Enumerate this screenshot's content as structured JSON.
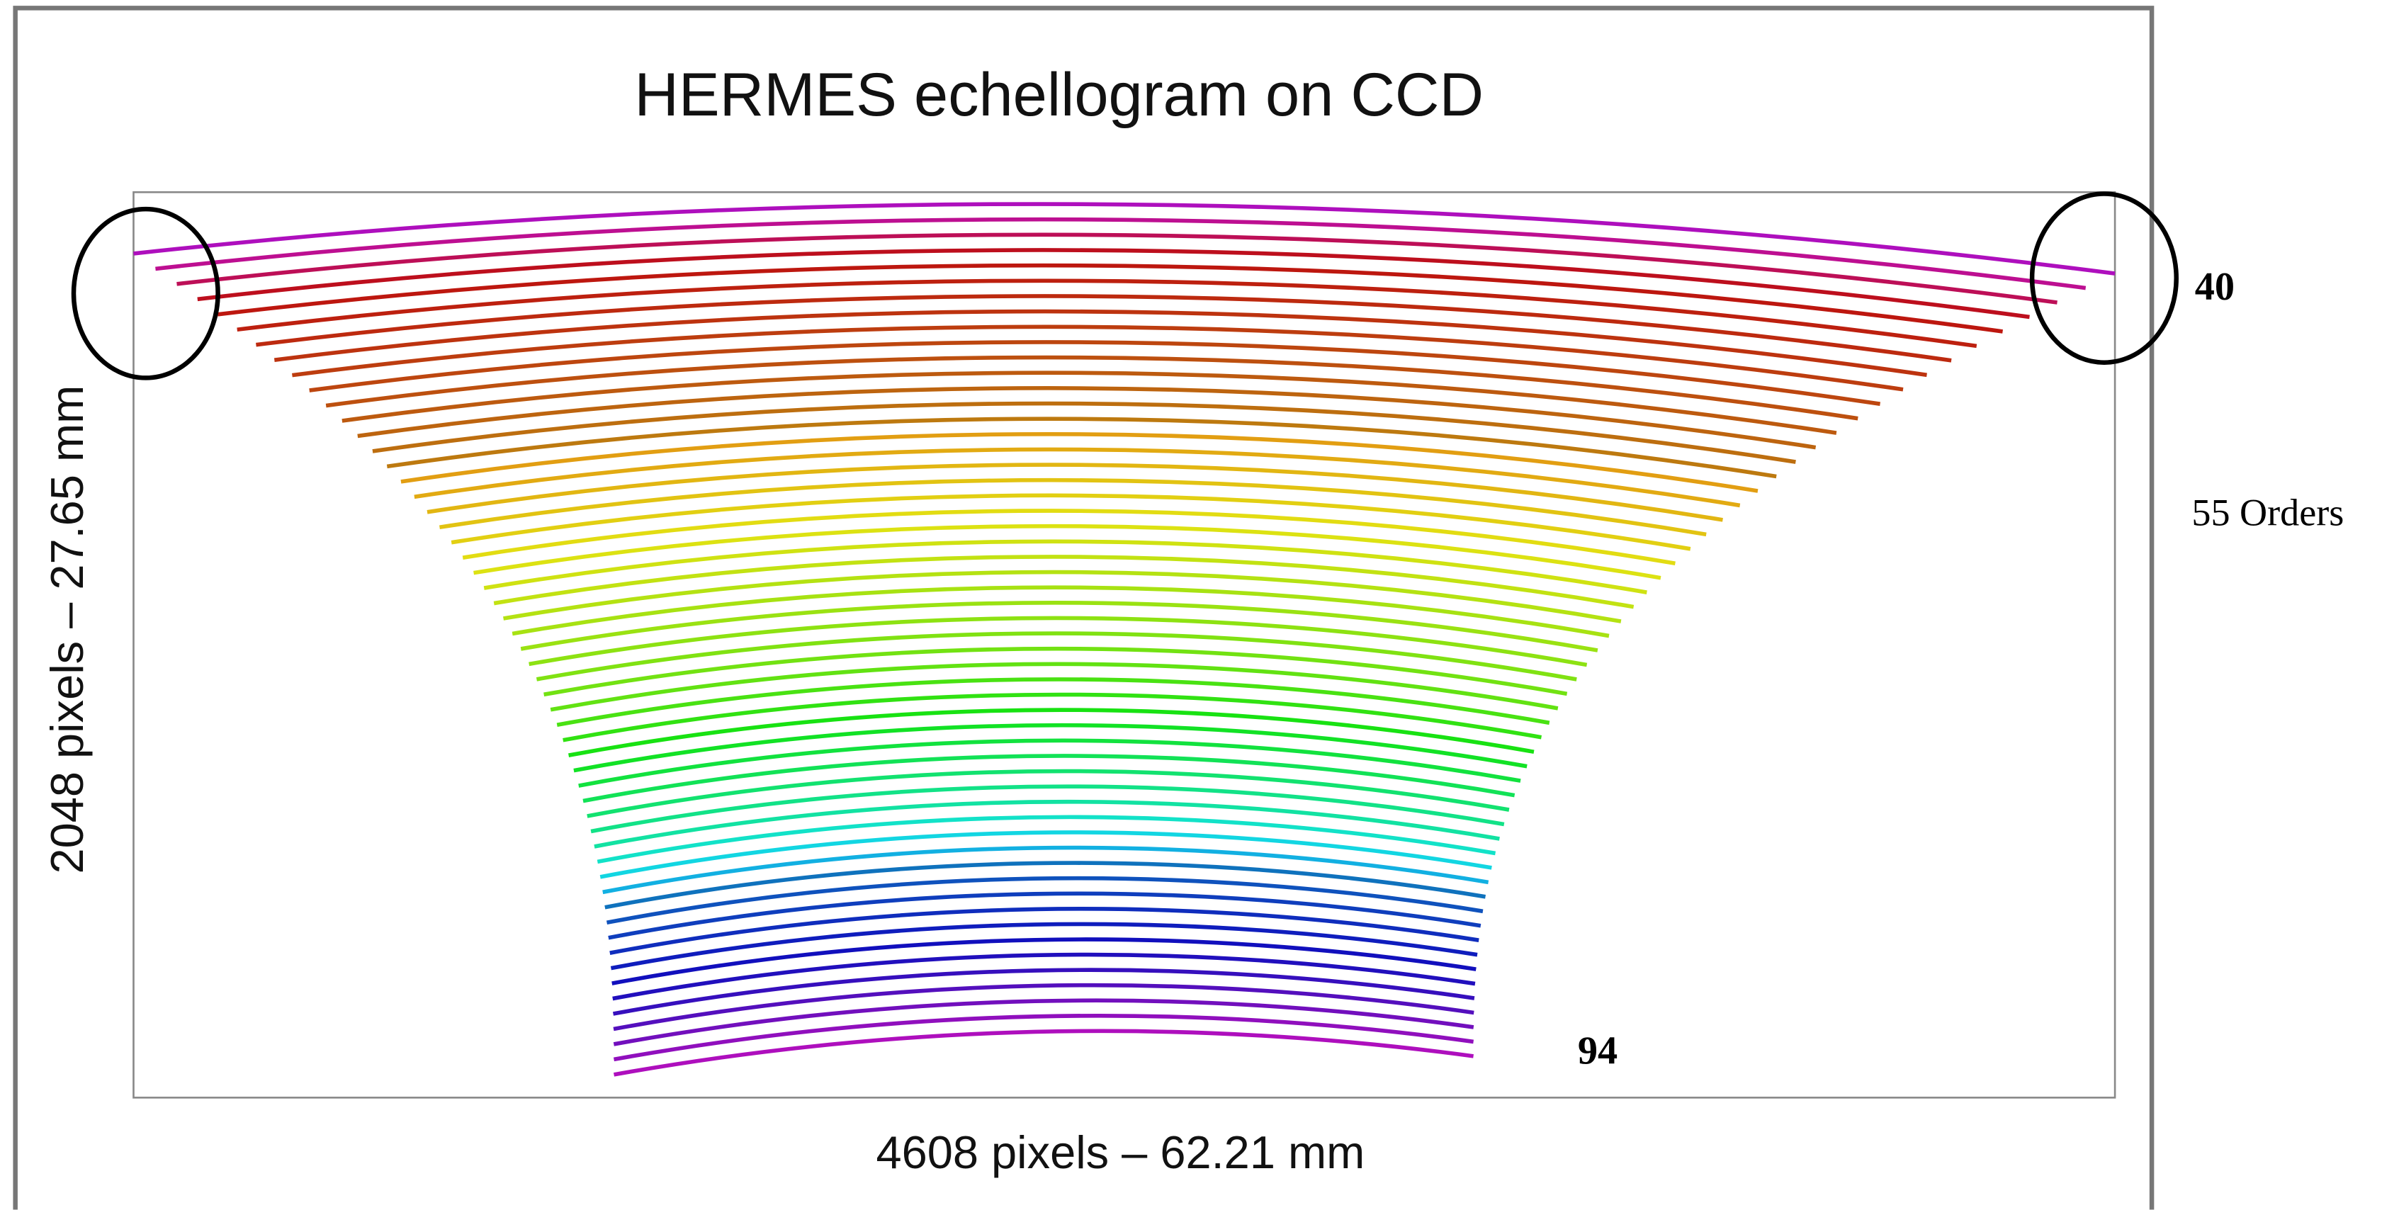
{
  "title": "HERMES echellogram on CCD",
  "x_label": "4608 pixels – 62.21 mm",
  "y_label": "2048 pixels – 27.65 mm",
  "orders": {
    "first": 40,
    "last": 94,
    "count_label": "55 Orders"
  }
}
